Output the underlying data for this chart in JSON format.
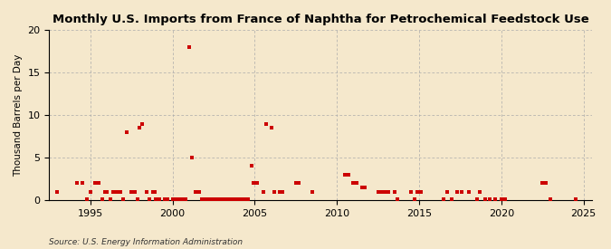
{
  "title": "Monthly U.S. Imports from France of Naphtha for Petrochemical Feedstock Use",
  "ylabel": "Thousand Barrels per Day",
  "source": "Source: U.S. Energy Information Administration",
  "xlim": [
    1992.5,
    2025.5
  ],
  "ylim": [
    0,
    20
  ],
  "yticks": [
    0,
    5,
    10,
    15,
    20
  ],
  "xticks": [
    1995,
    2000,
    2005,
    2010,
    2015,
    2020,
    2025
  ],
  "background_color": "#f5e8cc",
  "grid_color": "#aaaaaa",
  "dot_color": "#cc0000",
  "dot_size": 6,
  "data_points": [
    [
      1993.0,
      1.0
    ],
    [
      1994.2,
      2.0
    ],
    [
      1994.5,
      2.0
    ],
    [
      1994.8,
      0.1
    ],
    [
      1995.0,
      1.0
    ],
    [
      1995.3,
      2.0
    ],
    [
      1995.5,
      2.0
    ],
    [
      1995.7,
      0.1
    ],
    [
      1995.9,
      1.0
    ],
    [
      1996.0,
      1.0
    ],
    [
      1996.2,
      0.1
    ],
    [
      1996.4,
      1.0
    ],
    [
      1996.6,
      1.0
    ],
    [
      1996.8,
      1.0
    ],
    [
      1997.0,
      0.1
    ],
    [
      1997.2,
      8.0
    ],
    [
      1997.5,
      1.0
    ],
    [
      1997.7,
      1.0
    ],
    [
      1997.9,
      0.1
    ],
    [
      1998.0,
      8.5
    ],
    [
      1998.15,
      9.0
    ],
    [
      1998.4,
      1.0
    ],
    [
      1998.6,
      0.1
    ],
    [
      1998.8,
      1.0
    ],
    [
      1998.9,
      1.0
    ],
    [
      1999.0,
      0.1
    ],
    [
      1999.2,
      0.1
    ],
    [
      1999.5,
      0.1
    ],
    [
      1999.7,
      0.1
    ],
    [
      2000.0,
      0.1
    ],
    [
      2000.2,
      0.1
    ],
    [
      2000.4,
      0.1
    ],
    [
      2000.6,
      0.1
    ],
    [
      2000.8,
      0.1
    ],
    [
      2001.0,
      18.0
    ],
    [
      2001.15,
      5.0
    ],
    [
      2001.4,
      1.0
    ],
    [
      2001.6,
      1.0
    ],
    [
      2001.8,
      0.1
    ],
    [
      2002.0,
      0.1
    ],
    [
      2002.2,
      0.1
    ],
    [
      2002.4,
      0.1
    ],
    [
      2002.6,
      0.1
    ],
    [
      2002.8,
      0.1
    ],
    [
      2003.0,
      0.1
    ],
    [
      2003.2,
      0.1
    ],
    [
      2003.4,
      0.1
    ],
    [
      2003.6,
      0.1
    ],
    [
      2003.8,
      0.1
    ],
    [
      2004.0,
      0.1
    ],
    [
      2004.2,
      0.1
    ],
    [
      2004.4,
      0.1
    ],
    [
      2004.6,
      0.1
    ],
    [
      2004.8,
      4.0
    ],
    [
      2004.9,
      2.0
    ],
    [
      2005.0,
      2.0
    ],
    [
      2005.15,
      2.0
    ],
    [
      2005.5,
      1.0
    ],
    [
      2005.7,
      9.0
    ],
    [
      2006.0,
      8.5
    ],
    [
      2006.2,
      1.0
    ],
    [
      2006.5,
      1.0
    ],
    [
      2006.7,
      1.0
    ],
    [
      2007.5,
      2.0
    ],
    [
      2007.7,
      2.0
    ],
    [
      2008.5,
      1.0
    ],
    [
      2010.5,
      3.0
    ],
    [
      2010.7,
      3.0
    ],
    [
      2011.0,
      2.0
    ],
    [
      2011.2,
      2.0
    ],
    [
      2011.5,
      1.5
    ],
    [
      2011.7,
      1.5
    ],
    [
      2012.5,
      1.0
    ],
    [
      2012.7,
      1.0
    ],
    [
      2012.9,
      1.0
    ],
    [
      2013.1,
      1.0
    ],
    [
      2013.5,
      1.0
    ],
    [
      2013.7,
      0.1
    ],
    [
      2014.5,
      1.0
    ],
    [
      2014.7,
      0.1
    ],
    [
      2014.9,
      1.0
    ],
    [
      2015.1,
      1.0
    ],
    [
      2016.5,
      0.1
    ],
    [
      2016.7,
      1.0
    ],
    [
      2017.0,
      0.1
    ],
    [
      2017.3,
      1.0
    ],
    [
      2017.6,
      1.0
    ],
    [
      2018.0,
      1.0
    ],
    [
      2018.5,
      0.1
    ],
    [
      2018.7,
      1.0
    ],
    [
      2019.0,
      0.1
    ],
    [
      2019.3,
      0.1
    ],
    [
      2019.6,
      0.1
    ],
    [
      2020.0,
      0.1
    ],
    [
      2020.2,
      0.1
    ],
    [
      2022.5,
      2.0
    ],
    [
      2022.7,
      2.0
    ],
    [
      2023.0,
      0.1
    ],
    [
      2024.5,
      0.1
    ]
  ]
}
